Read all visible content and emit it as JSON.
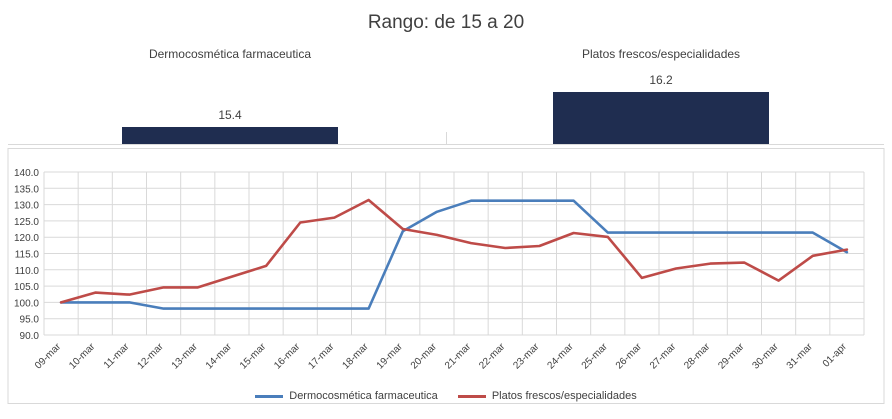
{
  "title": "Rango: de 15 a 20",
  "top_chart": {
    "type": "bar",
    "categories": [
      "Dermocosmética farmaceutica",
      "Platos frescos/especialidades"
    ],
    "values": [
      15.4,
      16.2
    ],
    "value_labels": [
      "15.4",
      "16.2"
    ],
    "ylim": [
      15.0,
      16.3
    ],
    "color": "#1f2d50"
  },
  "chart_data": {
    "type": "line",
    "title": "",
    "xlabel": "",
    "ylabel": "",
    "categories": [
      "09-mar",
      "10-mar",
      "11-mar",
      "12-mar",
      "13-mar",
      "14-mar",
      "15-mar",
      "16-mar",
      "17-mar",
      "18-mar",
      "19-mar",
      "20-mar",
      "21-mar",
      "22-mar",
      "23-mar",
      "24-mar",
      "25-mar",
      "26-mar",
      "27-mar",
      "28-mar",
      "29-mar",
      "30-mar",
      "31-mar",
      "01-apr"
    ],
    "ylim": [
      90,
      140
    ],
    "yticks": [
      "90.0",
      "95.0",
      "100.0",
      "105.0",
      "110.0",
      "115.0",
      "120.0",
      "125.0",
      "130.0",
      "135.0",
      "140.0"
    ],
    "grid": true,
    "legend_position": "bottom",
    "series": [
      {
        "name": "Dermocosmética farmaceutica",
        "color": "#4a7ebb",
        "values": [
          100.0,
          100.0,
          100.0,
          98.1,
          98.1,
          98.1,
          98.1,
          98.1,
          98.1,
          98.1,
          121.8,
          127.8,
          131.2,
          131.2,
          131.2,
          131.2,
          121.4,
          121.4,
          121.4,
          121.4,
          121.4,
          121.4,
          121.4,
          115.4
        ]
      },
      {
        "name": "Platos frescos/especialidades",
        "color": "#be4b48",
        "values": [
          100.0,
          103.0,
          102.4,
          104.6,
          104.6,
          107.9,
          111.2,
          124.5,
          126.0,
          131.4,
          122.5,
          120.7,
          118.2,
          116.7,
          117.3,
          121.3,
          120.1,
          107.5,
          110.4,
          111.9,
          112.2,
          106.7,
          114.3,
          116.2
        ]
      }
    ]
  }
}
